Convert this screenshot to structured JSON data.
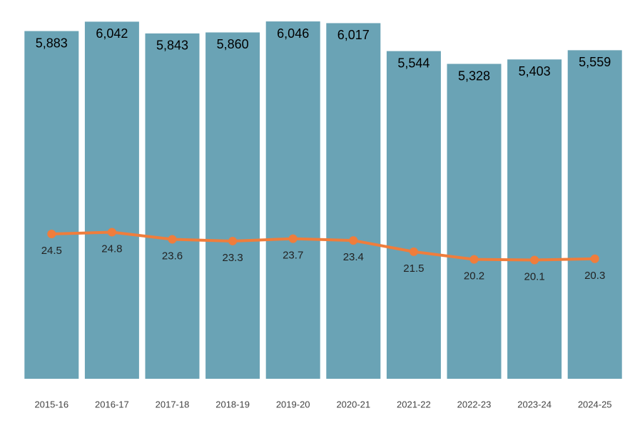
{
  "chart_data": {
    "type": "bar-line",
    "categories": [
      "2015-16",
      "2016-17",
      "2017-18",
      "2018-19",
      "2019-20",
      "2020-21",
      "2021-22",
      "2022-23",
      "2023-24",
      "2024-25"
    ],
    "series": [
      {
        "type": "bar",
        "color": "#6aa3b5",
        "values": [
          5883,
          6042,
          5843,
          5860,
          6046,
          6017,
          5544,
          5328,
          5403,
          5559
        ],
        "value_labels": [
          "5,883",
          "6,042",
          "5,843",
          "5,860",
          "6,046",
          "6,017",
          "5,544",
          "5,328",
          "5,403",
          "5,559"
        ]
      },
      {
        "type": "line",
        "axis": "y2",
        "color": "#ef7d3c",
        "values": [
          24.5,
          24.8,
          23.6,
          23.3,
          23.7,
          23.4,
          21.5,
          20.2,
          20.1,
          20.3
        ]
      }
    ],
    "ylim": [
      0,
      6300
    ],
    "y2lim": [
      0,
      63
    ],
    "grid": false
  }
}
